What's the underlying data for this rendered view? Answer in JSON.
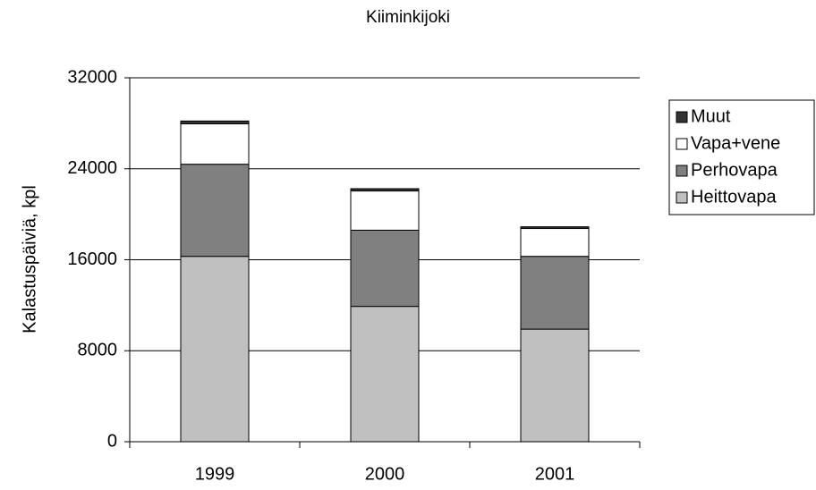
{
  "chart_data": {
    "type": "stacked_bar",
    "title": "Kiiminkijoki",
    "y_label": "Kalastuspäiviä, kpl",
    "categories": [
      "1999",
      "2000",
      "2001"
    ],
    "series": [
      {
        "name": "Heittovapa",
        "color": "#c0c0c0",
        "values": [
          16300,
          11900,
          9900
        ]
      },
      {
        "name": "Perhovapa",
        "color": "#808080",
        "values": [
          8100,
          6700,
          6400
        ]
      },
      {
        "name": "Vapa+vene",
        "color": "#ffffff",
        "values": [
          3550,
          3450,
          2450
        ]
      },
      {
        "name": "Muut",
        "color": "#333333",
        "values": [
          250,
          200,
          150
        ]
      }
    ],
    "ylim": [
      0,
      32000
    ],
    "yticks": [
      0,
      8000,
      16000,
      24000,
      32000
    ],
    "grid": true
  }
}
